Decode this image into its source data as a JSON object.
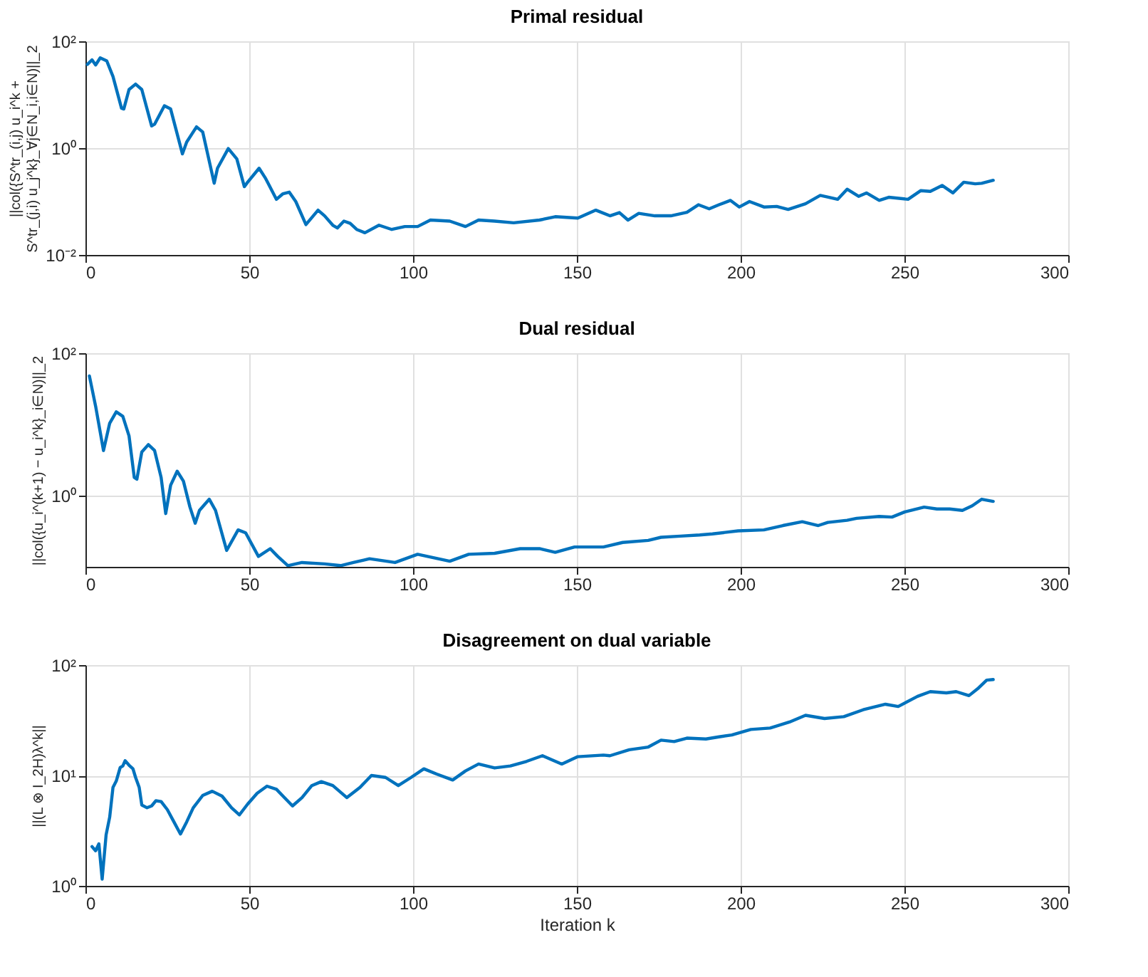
{
  "chart_data": [
    {
      "type": "line",
      "title": "Primal residual",
      "ylabel": "||col({S^tr_(i,j) u_i^k + S^tr_(j,i) u_j^k}_∀j∈N_i,i∈N)||_2",
      "log": "y",
      "grid": true,
      "xlim": [
        0,
        300
      ],
      "xticks": [
        0,
        50,
        100,
        150,
        200,
        250,
        300
      ],
      "ylim": [
        0.01,
        100
      ],
      "yticks": [
        {
          "value": 0.01,
          "label": "10⁻²"
        },
        {
          "value": 1,
          "label": "10⁰"
        },
        {
          "value": 100,
          "label": "10²"
        }
      ],
      "series": [
        {
          "color": "#0072bd",
          "x": [
            0.6,
            2.0,
            3.1,
            4.5,
            6.5,
            8.4,
            11.0,
            11.7,
            13.3,
            15.3,
            17.2,
            20.2,
            21.1,
            24.1,
            26.0,
            29.6,
            30.9,
            33.9,
            35.8,
            39.3,
            40.3,
            43.6,
            46.2,
            48.5,
            49.5,
            53.0,
            55.0,
            58.3,
            60.3,
            62.2,
            64.2,
            67.3,
            71.0,
            73.0,
            75.5,
            76.9,
            78.9,
            80.8,
            82.8,
            85.3,
            89.6,
            93.5,
            97.5,
            101.4,
            105.3,
            111.2,
            116.0,
            120.0,
            124.9,
            130.7,
            138.6,
            143.4,
            150.3,
            155.8,
            160.1,
            163.0,
            165.6,
            168.9,
            173.8,
            178.7,
            183.6,
            187.1,
            190.4,
            193.4,
            196.9,
            199.6,
            202.7,
            207.1,
            211.0,
            214.5,
            219.8,
            224.3,
            227.0,
            229.6,
            232.5,
            236.0,
            238.4,
            242.3,
            245.2,
            251.1,
            255.0,
            257.9,
            261.5,
            264.8,
            268.1,
            271.6,
            273.6,
            277.1
          ],
          "values": [
            37,
            45,
            36,
            49,
            43,
            22,
            5.6,
            5.4,
            12.5,
            15.8,
            12.5,
            2.6,
            2.8,
            6.2,
            5.4,
            0.78,
            1.3,
            2.5,
            2.0,
            0.22,
            0.42,
            0.98,
            0.63,
            0.19,
            0.23,
            0.42,
            0.27,
            0.11,
            0.14,
            0.15,
            0.1,
            0.037,
            0.069,
            0.054,
            0.036,
            0.032,
            0.043,
            0.039,
            0.03,
            0.026,
            0.036,
            0.03,
            0.034,
            0.034,
            0.045,
            0.043,
            0.034,
            0.045,
            0.043,
            0.04,
            0.045,
            0.052,
            0.049,
            0.069,
            0.054,
            0.062,
            0.045,
            0.06,
            0.054,
            0.054,
            0.063,
            0.087,
            0.073,
            0.087,
            0.105,
            0.079,
            0.1,
            0.079,
            0.081,
            0.071,
            0.091,
            0.13,
            0.12,
            0.11,
            0.17,
            0.125,
            0.145,
            0.105,
            0.12,
            0.11,
            0.16,
            0.155,
            0.2,
            0.145,
            0.23,
            0.215,
            0.22,
            0.25
          ]
        }
      ]
    },
    {
      "type": "line",
      "title": "Dual residual",
      "ylabel": "||col({u_i^(k+1) − u_i^k}_i∈N)||_2",
      "log": "y",
      "grid": true,
      "xlim": [
        0,
        300
      ],
      "xticks": [
        0,
        50,
        100,
        150,
        200,
        250,
        300
      ],
      "ylim": [
        0.1,
        100
      ],
      "yticks": [
        {
          "value": 1,
          "label": "10⁰"
        },
        {
          "value": 100,
          "label": "10²"
        }
      ],
      "series": [
        {
          "color": "#0072bd",
          "x": [
            1.2,
            3.1,
            5.5,
            7.4,
            9.4,
            11.4,
            13.3,
            14.9,
            15.7,
            17.2,
            19.2,
            21.1,
            23.1,
            24.5,
            26.0,
            28.0,
            29.9,
            31.9,
            33.5,
            34.8,
            37.8,
            39.7,
            43.1,
            46.6,
            48.9,
            52.8,
            56.4,
            58.7,
            61.8,
            66.1,
            73.0,
            77.9,
            81.8,
            86.7,
            94.5,
            101.4,
            111.2,
            117.0,
            124.9,
            132.7,
            138.6,
            143.4,
            149.3,
            158.1,
            164.0,
            171.8,
            175.7,
            181.6,
            187.5,
            191.4,
            199.2,
            207.1,
            212.9,
            218.8,
            223.7,
            226.6,
            232.5,
            235.4,
            242.3,
            246.2,
            250.1,
            256.0,
            259.9,
            263.8,
            267.7,
            270.7,
            273.6,
            277.1
          ],
          "values": [
            48,
            18,
            4.3,
            10.4,
            15,
            13,
            6.9,
            1.8,
            1.7,
            4.1,
            5.2,
            4.3,
            1.8,
            0.56,
            1.4,
            2.2,
            1.6,
            0.69,
            0.41,
            0.62,
            0.89,
            0.62,
            0.17,
            0.33,
            0.3,
            0.14,
            0.18,
            0.14,
            0.104,
            0.115,
            0.11,
            0.104,
            0.115,
            0.13,
            0.115,
            0.15,
            0.12,
            0.15,
            0.155,
            0.18,
            0.18,
            0.16,
            0.19,
            0.19,
            0.22,
            0.235,
            0.26,
            0.27,
            0.28,
            0.29,
            0.32,
            0.33,
            0.38,
            0.43,
            0.38,
            0.42,
            0.45,
            0.48,
            0.51,
            0.5,
            0.59,
            0.69,
            0.65,
            0.65,
            0.62,
            0.72,
            0.89,
            0.83
          ]
        }
      ]
    },
    {
      "type": "line",
      "title": "Disagreement on dual variable",
      "xlabel": "Iteration k",
      "ylabel": "||(L ⊗ I_2H)λ^k||",
      "log": "y",
      "grid": true,
      "xlim": [
        0,
        300
      ],
      "xticks": [
        0,
        50,
        100,
        150,
        200,
        250,
        300
      ],
      "ylim": [
        1,
        100
      ],
      "yticks": [
        {
          "value": 1,
          "label": "10⁰"
        },
        {
          "value": 10,
          "label": "10¹"
        },
        {
          "value": 100,
          "label": "10²"
        }
      ],
      "series": [
        {
          "color": "#0072bd",
          "x": [
            2.0,
            3.1,
            4.1,
            5.1,
            6.3,
            7.4,
            8.4,
            9.4,
            10.6,
            11.4,
            12.1,
            13.3,
            14.5,
            15.3,
            16.4,
            17.2,
            18.8,
            20.2,
            21.5,
            23.1,
            25.0,
            27.0,
            29.0,
            30.9,
            32.9,
            35.8,
            38.7,
            41.7,
            44.6,
            47.0,
            49.5,
            52.4,
            55.4,
            58.3,
            60.3,
            63.2,
            66.1,
            69.1,
            72.0,
            75.5,
            79.8,
            83.8,
            87.3,
            91.6,
            95.5,
            99.4,
            103.3,
            107.2,
            112.1,
            116.0,
            120.0,
            124.9,
            129.7,
            134.6,
            139.5,
            142.5,
            145.4,
            150.3,
            158.1,
            160.1,
            166.0,
            171.8,
            175.7,
            179.7,
            183.6,
            189.4,
            193.4,
            197.3,
            203.1,
            209.0,
            214.9,
            219.8,
            225.6,
            231.5,
            237.4,
            244.2,
            248.1,
            254.0,
            257.9,
            262.8,
            265.8,
            269.7,
            272.6,
            275.1,
            277.1
          ],
          "values": [
            2.27,
            2.08,
            2.4,
            1.15,
            2.9,
            4.2,
            7.8,
            8.9,
            11.8,
            12.2,
            13.6,
            12.4,
            11.5,
            9.6,
            7.8,
            5.4,
            5.1,
            5.3,
            5.9,
            5.8,
            4.9,
            3.8,
            2.95,
            3.8,
            5.1,
            6.6,
            7.2,
            6.5,
            5.1,
            4.4,
            5.5,
            6.9,
            8.0,
            7.5,
            6.5,
            5.3,
            6.3,
            8.1,
            8.8,
            8.1,
            6.3,
            7.8,
            10,
            9.6,
            8.1,
            9.6,
            11.5,
            10.3,
            9.1,
            11.0,
            12.7,
            11.7,
            12.2,
            13.4,
            15.1,
            13.8,
            12.7,
            14.8,
            15.3,
            15.1,
            17.1,
            18.1,
            20.9,
            20.3,
            21.8,
            21.4,
            22.4,
            23.3,
            26.1,
            26.9,
            30.5,
            35.1,
            32.8,
            34.1,
            39.4,
            44.2,
            42.2,
            52.1,
            57.5,
            56,
            57.5,
            52.9,
            62,
            73,
            74
          ]
        }
      ]
    }
  ]
}
